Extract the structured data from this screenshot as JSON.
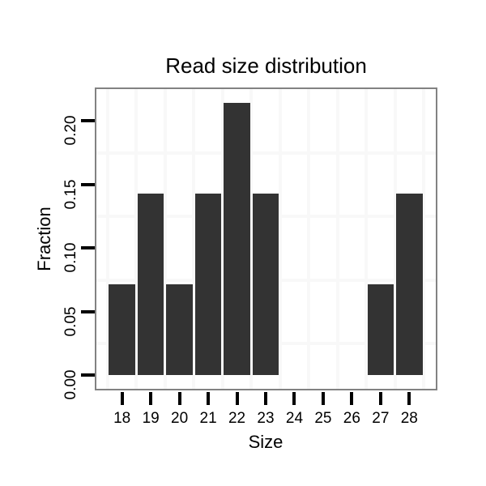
{
  "chart_data": {
    "type": "bar",
    "title": "Read size distribution",
    "xlabel": "Size",
    "ylabel": "Fraction",
    "categories": [
      18,
      19,
      20,
      21,
      22,
      23,
      24,
      25,
      26,
      27,
      28
    ],
    "values": [
      0.0714,
      0.1429,
      0.0714,
      0.1429,
      0.2143,
      0.1429,
      0,
      0,
      0,
      0.0714,
      0.1429
    ],
    "x_tick_labels": [
      "18",
      "19",
      "20",
      "21",
      "22",
      "23",
      "24",
      "25",
      "26",
      "27",
      "28"
    ],
    "y_ticks": [
      0.0,
      0.05,
      0.1,
      0.15,
      0.2
    ],
    "y_tick_labels": [
      "0.00",
      "0.05",
      "0.10",
      "0.15",
      "0.20"
    ],
    "ylim": [
      -0.011,
      0.225
    ],
    "xlim": [
      17.1,
      28.9
    ],
    "bar_width_units": 0.92,
    "grid": "minor-only",
    "x_minor_grid": [
      17.5,
      18.5,
      19.5,
      20.5,
      21.5,
      22.5,
      23.5,
      24.5,
      25.5,
      26.5,
      27.5,
      28.5
    ],
    "y_minor_grid": [
      0.025,
      0.075,
      0.125,
      0.175
    ],
    "legend_position": "none",
    "colors": {
      "bar_fill": "#333333",
      "panel_border": "#828282",
      "grid_line": "#f8f8f8",
      "tick_mark": "#000000",
      "text": "#000000",
      "background": "#ffffff"
    }
  }
}
